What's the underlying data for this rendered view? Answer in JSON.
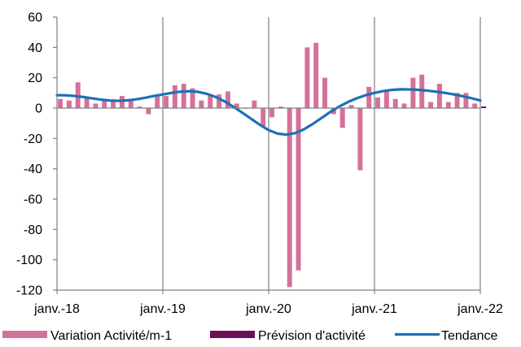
{
  "chart_data": {
    "type": "bar",
    "title": "",
    "xlabel": "",
    "ylabel": "",
    "ylim": [
      -120,
      60
    ],
    "yticks": [
      60,
      40,
      20,
      0,
      -20,
      -40,
      -60,
      -80,
      -100,
      -120
    ],
    "xlim": [
      "2018-01",
      "2022-01"
    ],
    "xtick_labels": [
      "janv.-18",
      "janv.-19",
      "janv.-20",
      "janv.-21",
      "janv.-22"
    ],
    "grid": {
      "vertical": true,
      "horizontal": false
    },
    "legend_position": "bottom",
    "months": [
      "2018-01",
      "2018-02",
      "2018-03",
      "2018-04",
      "2018-05",
      "2018-06",
      "2018-07",
      "2018-08",
      "2018-09",
      "2018-10",
      "2018-11",
      "2018-12",
      "2019-01",
      "2019-02",
      "2019-03",
      "2019-04",
      "2019-05",
      "2019-06",
      "2019-07",
      "2019-08",
      "2019-09",
      "2019-10",
      "2019-11",
      "2019-12",
      "2020-01",
      "2020-02",
      "2020-03",
      "2020-04",
      "2020-05",
      "2020-06",
      "2020-07",
      "2020-08",
      "2020-09",
      "2020-10",
      "2020-11",
      "2020-12",
      "2021-01",
      "2021-02",
      "2021-03",
      "2021-04",
      "2021-05",
      "2021-06",
      "2021-07",
      "2021-08",
      "2021-09",
      "2021-10",
      "2021-11",
      "2021-12",
      "2022-01"
    ],
    "series": [
      {
        "name": "Variation Activité/m-1",
        "type": "bar",
        "color": "#d4719a",
        "values": [
          6,
          5,
          17,
          7,
          3,
          5,
          5,
          8,
          5,
          1,
          -4,
          8,
          8,
          15,
          16,
          13,
          5,
          8,
          9,
          11,
          3,
          0,
          5,
          -12,
          -6,
          1,
          -118,
          -107,
          40,
          43,
          20,
          -4,
          -13,
          2,
          -41,
          14,
          7,
          11,
          6,
          3,
          20,
          22,
          4,
          16,
          4,
          10,
          10,
          3,
          1
        ]
      },
      {
        "name": "Prévision d'activité",
        "type": "bar",
        "color": "#6b0f57",
        "values": [
          null,
          null,
          null,
          null,
          null,
          null,
          null,
          null,
          null,
          null,
          null,
          null,
          null,
          null,
          null,
          null,
          null,
          null,
          null,
          null,
          null,
          null,
          null,
          null,
          null,
          null,
          null,
          null,
          null,
          null,
          null,
          null,
          null,
          null,
          null,
          null,
          null,
          null,
          null,
          null,
          null,
          null,
          null,
          null,
          null,
          null,
          null,
          null,
          1
        ]
      },
      {
        "name": "Tendance",
        "type": "line",
        "color": "#1f6fb5",
        "values": [
          8.5,
          8.4,
          8.0,
          7.3,
          6.4,
          5.6,
          5.0,
          4.8,
          5.1,
          5.8,
          6.8,
          8.0,
          9.0,
          10.0,
          10.8,
          11.1,
          10.7,
          9.4,
          7.3,
          4.4,
          0.9,
          -3.0,
          -7.0,
          -11.0,
          -14.5,
          -16.8,
          -17.5,
          -16.5,
          -14.0,
          -10.5,
          -6.5,
          -2.5,
          1.0,
          4.0,
          6.5,
          8.5,
          10.0,
          11.2,
          12.0,
          12.4,
          12.3,
          12.0,
          11.5,
          10.8,
          10.0,
          9.0,
          7.8,
          6.5,
          5.0
        ]
      }
    ]
  }
}
